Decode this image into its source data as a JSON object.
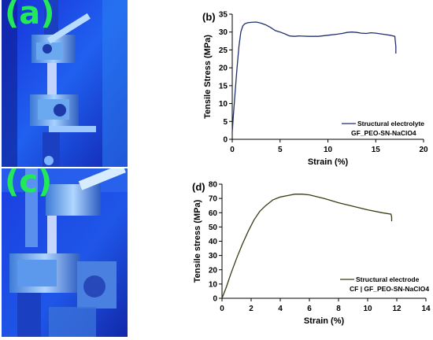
{
  "photos": [
    {
      "label": "(a)"
    },
    {
      "label": "(c)"
    }
  ],
  "chart_data": [
    {
      "panel_label": "(b)",
      "type": "line",
      "xlabel": "Strain (%)",
      "ylabel": "Tensile Stress  (MPa)",
      "xlim": [
        0,
        20
      ],
      "ylim": [
        0,
        35
      ],
      "xticks": [
        0,
        5,
        10,
        15,
        20
      ],
      "yticks": [
        0,
        5,
        10,
        15,
        20,
        25,
        30,
        35
      ],
      "grid": false,
      "legend_position": "bottom-right",
      "line_color": "#1f2f6e",
      "series": [
        {
          "name": "Structural electrolyte\nGF_PEO-SN-NaClO4",
          "legend_lines": [
            "Structural electrolyte",
            "GF_PEO-SN-NaClO4"
          ],
          "x": [
            0,
            0.1,
            0.3,
            0.5,
            0.7,
            0.9,
            1.1,
            1.3,
            1.6,
            2.0,
            2.5,
            3.0,
            3.5,
            4.0,
            4.5,
            5.0,
            5.5,
            6.0,
            6.5,
            7.0,
            8.0,
            9.0,
            10.0,
            11.0,
            11.5,
            12.0,
            12.5,
            13.0,
            13.5,
            14.0,
            14.5,
            15.0,
            15.5,
            16.0,
            16.5,
            17.0,
            17.1,
            17.1
          ],
          "values": [
            2,
            6,
            13,
            20,
            26,
            30,
            31.7,
            32.3,
            32.6,
            32.7,
            32.8,
            32.5,
            32.0,
            31.3,
            30.4,
            30.0,
            29.5,
            28.9,
            28.8,
            28.9,
            28.8,
            28.8,
            29.1,
            29.4,
            29.6,
            29.9,
            30.0,
            29.9,
            29.7,
            29.6,
            29.8,
            29.7,
            29.5,
            29.3,
            29.1,
            28.8,
            26.0,
            24.0
          ]
        }
      ]
    },
    {
      "panel_label": "(d)",
      "type": "line",
      "xlabel": "Strain (%)",
      "ylabel": "Tensile stress (MPa)",
      "xlim": [
        0,
        14
      ],
      "ylim": [
        0,
        80
      ],
      "xticks": [
        0,
        2,
        4,
        6,
        8,
        10,
        12,
        14
      ],
      "yticks": [
        0,
        10,
        20,
        30,
        40,
        50,
        60,
        70,
        80
      ],
      "grid": false,
      "legend_position": "bottom-right",
      "line_color": "#3a3a14",
      "series": [
        {
          "name": "Structural electrode\nCF | GF_PEO-SN-NaClO4",
          "legend_lines": [
            "Structural electrode",
            "CF | GF_PEO-SN-NaClO4"
          ],
          "x": [
            0,
            0.3,
            0.6,
            1.0,
            1.4,
            1.8,
            2.2,
            2.6,
            3.0,
            3.5,
            4.0,
            4.5,
            5.0,
            5.5,
            6.0,
            7.0,
            8.0,
            9.0,
            10.0,
            11.0,
            11.6,
            11.65,
            11.65
          ],
          "values": [
            0,
            8,
            17,
            28,
            38,
            47,
            55,
            61,
            65,
            69,
            71,
            72,
            73,
            73,
            72.5,
            70,
            67,
            64.5,
            62,
            60,
            59,
            57,
            54
          ]
        }
      ]
    }
  ]
}
